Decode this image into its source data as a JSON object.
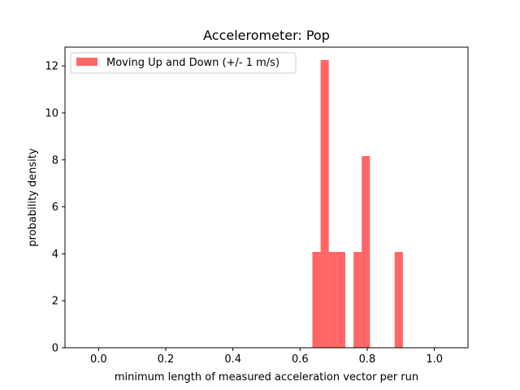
{
  "chart_data": {
    "type": "bar",
    "title": "Accelerometer: Pop",
    "xlabel": "minimum length of measured acceleration vector per run",
    "ylabel": "probability density",
    "xlim": [
      -0.1,
      1.1
    ],
    "ylim": [
      0,
      12.8
    ],
    "xticks": [
      0.0,
      0.2,
      0.4,
      0.6,
      0.8,
      1.0
    ],
    "xtick_labels": [
      "0.0",
      "0.2",
      "0.4",
      "0.6",
      "0.8",
      "1.0"
    ],
    "yticks": [
      0,
      2,
      4,
      6,
      8,
      10,
      12
    ],
    "ytick_labels": [
      "0",
      "2",
      "4",
      "6",
      "8",
      "10",
      "12"
    ],
    "grid": false,
    "legend_position": "top-left",
    "series": [
      {
        "name": "Moving Up and Down (+/- 1 m/s)",
        "color": "#ff0000",
        "alpha": 0.6,
        "bins": [
          {
            "x0": 0.6366,
            "x1": 0.6611,
            "density": 4.08
          },
          {
            "x0": 0.6611,
            "x1": 0.6856,
            "density": 12.25
          },
          {
            "x0": 0.6856,
            "x1": 0.7101,
            "density": 4.08
          },
          {
            "x0": 0.7101,
            "x1": 0.7346,
            "density": 4.08
          },
          {
            "x0": 0.7591,
            "x1": 0.7836,
            "density": 4.08
          },
          {
            "x0": 0.7836,
            "x1": 0.8081,
            "density": 8.16
          },
          {
            "x0": 0.8816,
            "x1": 0.9061,
            "density": 4.08
          }
        ]
      }
    ]
  }
}
